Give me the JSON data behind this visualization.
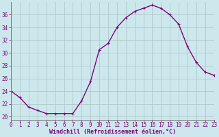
{
  "x": [
    0,
    1,
    2,
    3,
    4,
    5,
    6,
    7,
    8,
    9,
    10,
    11,
    12,
    13,
    14,
    15,
    16,
    17,
    18,
    19,
    20,
    21,
    22,
    23
  ],
  "y": [
    24,
    23,
    21.5,
    21,
    20.5,
    20.5,
    20.5,
    20.5,
    22.5,
    25.5,
    30.5,
    31.5,
    34,
    35.5,
    36.5,
    37,
    37.5,
    37,
    36,
    34.5,
    31,
    28.5,
    27,
    26.5
  ],
  "line_color": "#800080",
  "marker": "+",
  "bg_color": "#cce8ec",
  "grid_color": "#b0c8cc",
  "axis_label_color": "#800080",
  "xlabel": "Windchill (Refroidissement éolien,°C)",
  "ylim": [
    19.5,
    38.0
  ],
  "xlim": [
    0,
    23
  ],
  "yticks": [
    20,
    22,
    24,
    26,
    28,
    30,
    32,
    34,
    36
  ],
  "xticks": [
    0,
    1,
    2,
    3,
    4,
    5,
    6,
    7,
    8,
    9,
    10,
    11,
    12,
    13,
    14,
    15,
    16,
    17,
    18,
    19,
    20,
    21,
    22,
    23
  ],
  "tick_fontsize": 5.5,
  "xlabel_fontsize": 6.0,
  "linewidth": 1.0,
  "markersize": 3.5
}
